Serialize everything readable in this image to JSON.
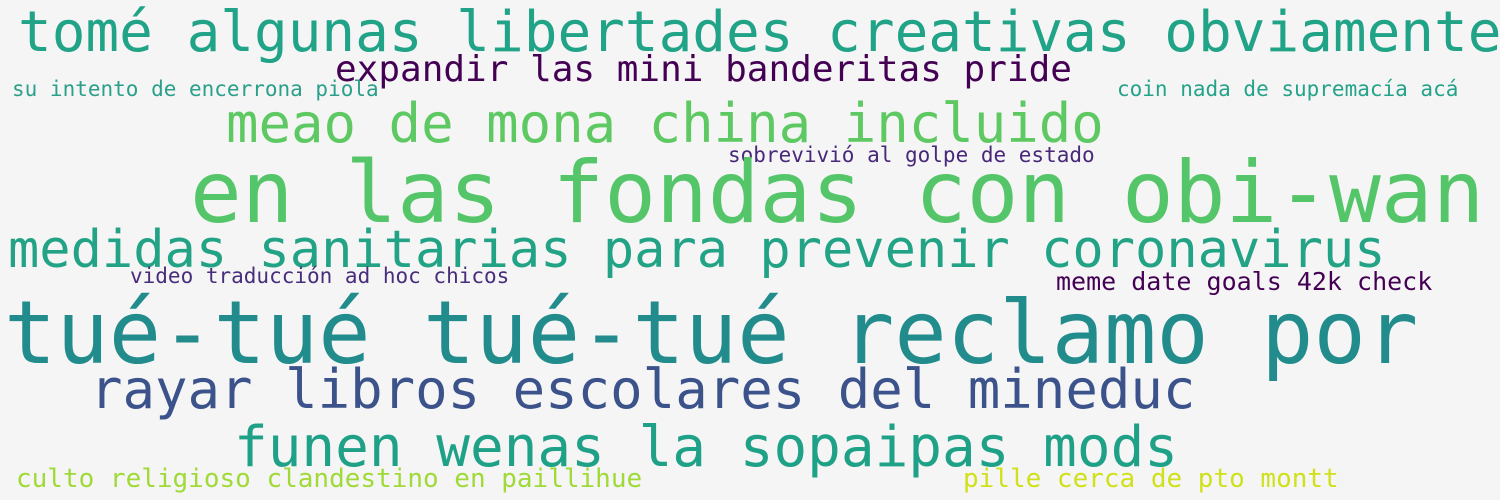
{
  "words": [
    {
      "text": "tomé algunas libertades creativas obviamente",
      "color": "#20a386"
    },
    {
      "text": "expandir las mini banderitas pride",
      "color": "#440154"
    },
    {
      "text": "su intento de encerrona piola",
      "color": "#2a9f8a"
    },
    {
      "text": "coin nada de supremacía acá",
      "color": "#25a38a"
    },
    {
      "text": "meao de mona china incluido",
      "color": "#5ec962"
    },
    {
      "text": "sobrevivió al golpe de estado",
      "color": "#482878"
    },
    {
      "text": "en las fondas con obi-wan",
      "color": "#54c568"
    },
    {
      "text": "medidas sanitarias para prevenir coronavirus",
      "color": "#22a385"
    },
    {
      "text": "video traducción ad hoc chicos",
      "color": "#472d7b"
    },
    {
      "text": "meme date goals 42k check",
      "color": "#440154"
    },
    {
      "text": "tué-tué tué-tué reclamo por",
      "color": "#228c8d"
    },
    {
      "text": "rayar libros escolares del mineduc",
      "color": "#3b528b"
    },
    {
      "text": "funen wenas la sopaipas mods",
      "color": "#1fa187"
    },
    {
      "text": "culto religioso clandestino en paillihue",
      "color": "#a0da39"
    },
    {
      "text": "pille cerca de pto montt",
      "color": "#d0e11c"
    }
  ]
}
